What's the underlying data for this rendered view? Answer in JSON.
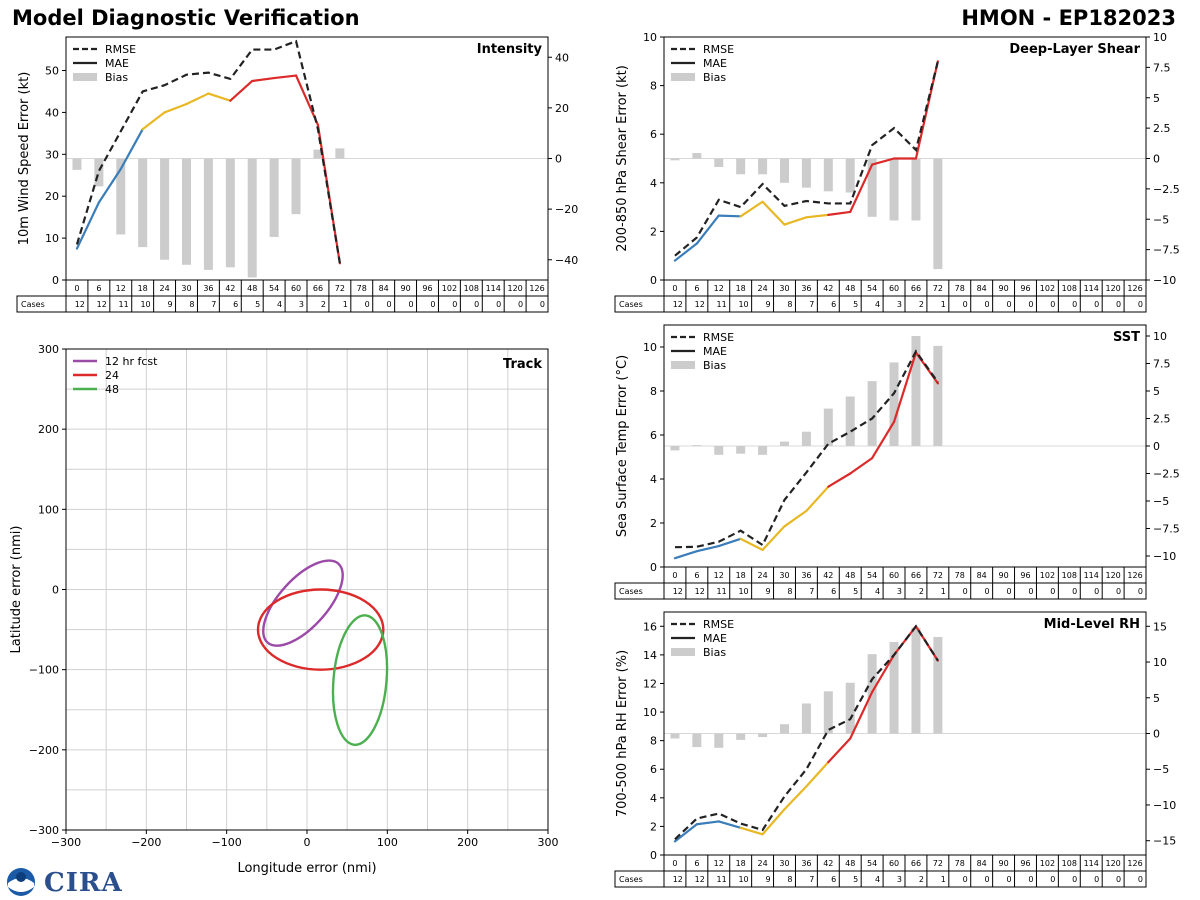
{
  "title": "Model Diagnostic Verification",
  "model_id": "HMON - EP182023",
  "colors": {
    "rmse": "#222222",
    "blue": "#3a7db8",
    "yellow": "#e8b824",
    "red": "#dc2a2a",
    "bias": "#cccccc",
    "grid": "#d0d0d0",
    "purple": "#9b4aa8",
    "green": "#4caf50"
  },
  "forecast_hours": [
    "0",
    "6",
    "12",
    "18",
    "24",
    "30",
    "36",
    "42",
    "48",
    "54",
    "60",
    "66",
    "72",
    "78",
    "84",
    "90",
    "96",
    "102",
    "108",
    "114",
    "120",
    "126"
  ],
  "cases_label": "Cases",
  "cases": [
    "12",
    "12",
    "11",
    "10",
    "9",
    "8",
    "7",
    "6",
    "5",
    "4",
    "3",
    "2",
    "1",
    "0",
    "0",
    "0",
    "0",
    "0",
    "0",
    "0",
    "0",
    "0"
  ],
  "legend": {
    "rmse": "RMSE",
    "mae": "MAE",
    "bias": "Bias"
  },
  "logo": {
    "text": "CIRA",
    "emblem": "noaa-emblem"
  },
  "chart_data": [
    {
      "id": "intensity",
      "type": "line",
      "title": "Intensity",
      "ylabel": "10m Wind Speed Error (kt)",
      "ylim": [
        0,
        58
      ],
      "yticks": [
        0,
        10,
        20,
        30,
        40,
        50
      ],
      "y2lim": [
        -48,
        48
      ],
      "y2ticks": [
        -40,
        -20,
        0,
        20,
        40
      ],
      "series": [
        {
          "name": "RMSE",
          "x": [
            0,
            6,
            12,
            18,
            24,
            30,
            36,
            42,
            48,
            54,
            60,
            66,
            72
          ],
          "values": [
            8.5,
            26,
            35.5,
            45,
            46.5,
            49,
            49.5,
            48,
            55,
            55,
            57,
            36,
            4
          ]
        },
        {
          "name": "MAE",
          "x": [
            0,
            6,
            12,
            18,
            24,
            30,
            36,
            42,
            48,
            54,
            60,
            66,
            72
          ],
          "values": [
            7.5,
            18.5,
            26.5,
            36,
            40,
            42,
            44.5,
            42.8,
            47.5,
            48.2,
            48.8,
            37,
            4
          ]
        },
        {
          "name": "Bias",
          "x": [
            0,
            6,
            12,
            18,
            24,
            30,
            36,
            42,
            48,
            54,
            60,
            66,
            72
          ],
          "values": [
            -4.5,
            -11,
            -30,
            -35,
            -40,
            -42,
            -44,
            -43,
            -47,
            -31,
            -22,
            3.5,
            4
          ]
        }
      ]
    },
    {
      "id": "shear",
      "type": "line",
      "title": "Deep-Layer Shear",
      "ylabel": "200-850 hPa Shear Error (kt)",
      "ylim": [
        0,
        10
      ],
      "yticks": [
        0,
        2,
        4,
        6,
        8,
        10
      ],
      "y2lim": [
        -10,
        10
      ],
      "y2ticks": [
        -10.0,
        -7.5,
        -5.0,
        -2.5,
        0.0,
        2.5,
        5.0,
        7.5,
        10.0
      ],
      "series": [
        {
          "name": "RMSE",
          "x": [
            0,
            6,
            12,
            18,
            24,
            30,
            36,
            42,
            48,
            54,
            60,
            66,
            72
          ],
          "values": [
            1.0,
            1.75,
            3.3,
            3.0,
            3.95,
            3.05,
            3.25,
            3.15,
            3.15,
            5.55,
            6.25,
            5.35,
            9.0
          ]
        },
        {
          "name": "MAE",
          "x": [
            0,
            6,
            12,
            18,
            24,
            30,
            36,
            42,
            48,
            54,
            60,
            66,
            72
          ],
          "values": [
            0.8,
            1.5,
            2.65,
            2.62,
            3.22,
            2.28,
            2.58,
            2.68,
            2.8,
            4.75,
            5.0,
            5.0,
            9.0
          ]
        },
        {
          "name": "Bias",
          "x": [
            0,
            6,
            12,
            18,
            24,
            30,
            36,
            42,
            48,
            54,
            60,
            66,
            72
          ],
          "values": [
            -0.15,
            0.45,
            -0.7,
            -1.3,
            -1.3,
            -2.0,
            -2.4,
            -2.7,
            -2.8,
            -4.8,
            -5.1,
            -5.1,
            -9.1
          ]
        }
      ]
    },
    {
      "id": "sst",
      "type": "line",
      "title": "SST",
      "ylabel": "Sea Surface Temp Error (°C)",
      "ylim": [
        0,
        11
      ],
      "yticks": [
        0,
        2,
        4,
        6,
        8,
        10
      ],
      "y2lim": [
        -11,
        11
      ],
      "y2ticks": [
        -10.0,
        -7.5,
        -5.0,
        -2.5,
        0.0,
        2.5,
        5.0,
        7.5,
        10.0
      ],
      "series": [
        {
          "name": "RMSE",
          "x": [
            0,
            6,
            12,
            18,
            24,
            30,
            36,
            42,
            48,
            54,
            60,
            66,
            72
          ],
          "values": [
            0.9,
            0.92,
            1.15,
            1.65,
            1.0,
            3.05,
            4.3,
            5.6,
            6.15,
            6.75,
            7.9,
            9.8,
            8.4
          ]
        },
        {
          "name": "MAE",
          "x": [
            0,
            6,
            12,
            18,
            24,
            30,
            36,
            42,
            48,
            54,
            60,
            66,
            72
          ],
          "values": [
            0.4,
            0.72,
            0.95,
            1.28,
            0.78,
            1.85,
            2.55,
            3.65,
            4.25,
            4.95,
            6.6,
            9.75,
            8.35
          ]
        },
        {
          "name": "Bias",
          "x": [
            0,
            6,
            12,
            18,
            24,
            30,
            36,
            42,
            48,
            54,
            60,
            66,
            72
          ],
          "values": [
            -0.4,
            0.08,
            -0.8,
            -0.7,
            -0.8,
            0.4,
            1.3,
            3.4,
            4.5,
            5.9,
            7.6,
            10.0,
            9.1
          ]
        }
      ]
    },
    {
      "id": "rh",
      "type": "line",
      "title": "Mid-Level RH",
      "ylabel": "700-500 hPa RH Error (%)",
      "ylim": [
        0,
        17
      ],
      "yticks": [
        0,
        2,
        4,
        6,
        8,
        10,
        12,
        14,
        16
      ],
      "y2lim": [
        -17,
        17
      ],
      "y2ticks": [
        -15,
        -10,
        -5,
        0,
        5,
        10,
        15
      ],
      "series": [
        {
          "name": "RMSE",
          "x": [
            0,
            6,
            12,
            18,
            24,
            30,
            36,
            42,
            48,
            54,
            60,
            66,
            72
          ],
          "values": [
            1.1,
            2.55,
            2.9,
            2.2,
            1.75,
            4.1,
            6.0,
            8.75,
            9.5,
            12.3,
            14.0,
            16.0,
            13.6
          ]
        },
        {
          "name": "MAE",
          "x": [
            0,
            6,
            12,
            18,
            24,
            30,
            36,
            42,
            48,
            54,
            60,
            66,
            72
          ],
          "values": [
            0.95,
            2.15,
            2.35,
            1.9,
            1.45,
            3.2,
            4.8,
            6.5,
            8.15,
            11.4,
            14.0,
            16.0,
            13.6
          ]
        },
        {
          "name": "Bias",
          "x": [
            0,
            6,
            12,
            18,
            24,
            30,
            36,
            42,
            48,
            54,
            60,
            66,
            72
          ],
          "values": [
            -0.7,
            -1.9,
            -2.0,
            -0.9,
            -0.5,
            1.3,
            4.2,
            5.9,
            7.1,
            11.1,
            12.8,
            14.8,
            13.5
          ]
        }
      ]
    },
    {
      "id": "track",
      "type": "scatter",
      "title": "Track",
      "xlabel": "Longitude error (nmi)",
      "ylabel": "Latitude error (nmi)",
      "xlim": [
        -300,
        300
      ],
      "ylim": [
        -300,
        300
      ],
      "ticks": [
        -300,
        -200,
        -100,
        0,
        100,
        200,
        300
      ],
      "grid": [
        -250,
        -200,
        -150,
        -100,
        -50,
        0,
        50,
        100,
        150,
        200,
        250
      ],
      "series": [
        {
          "name": "12 hr fcst",
          "center": [
            -5,
            -17
          ],
          "semi_axes": [
            66,
            30
          ],
          "rotation_deg": -48
        },
        {
          "name": "24",
          "center": [
            17,
            -50
          ],
          "semi_axes": [
            78,
            50
          ],
          "rotation_deg": 0
        },
        {
          "name": "48",
          "center": [
            66,
            -113
          ],
          "semi_axes": [
            33,
            81
          ],
          "rotation_deg": 5
        }
      ]
    }
  ]
}
